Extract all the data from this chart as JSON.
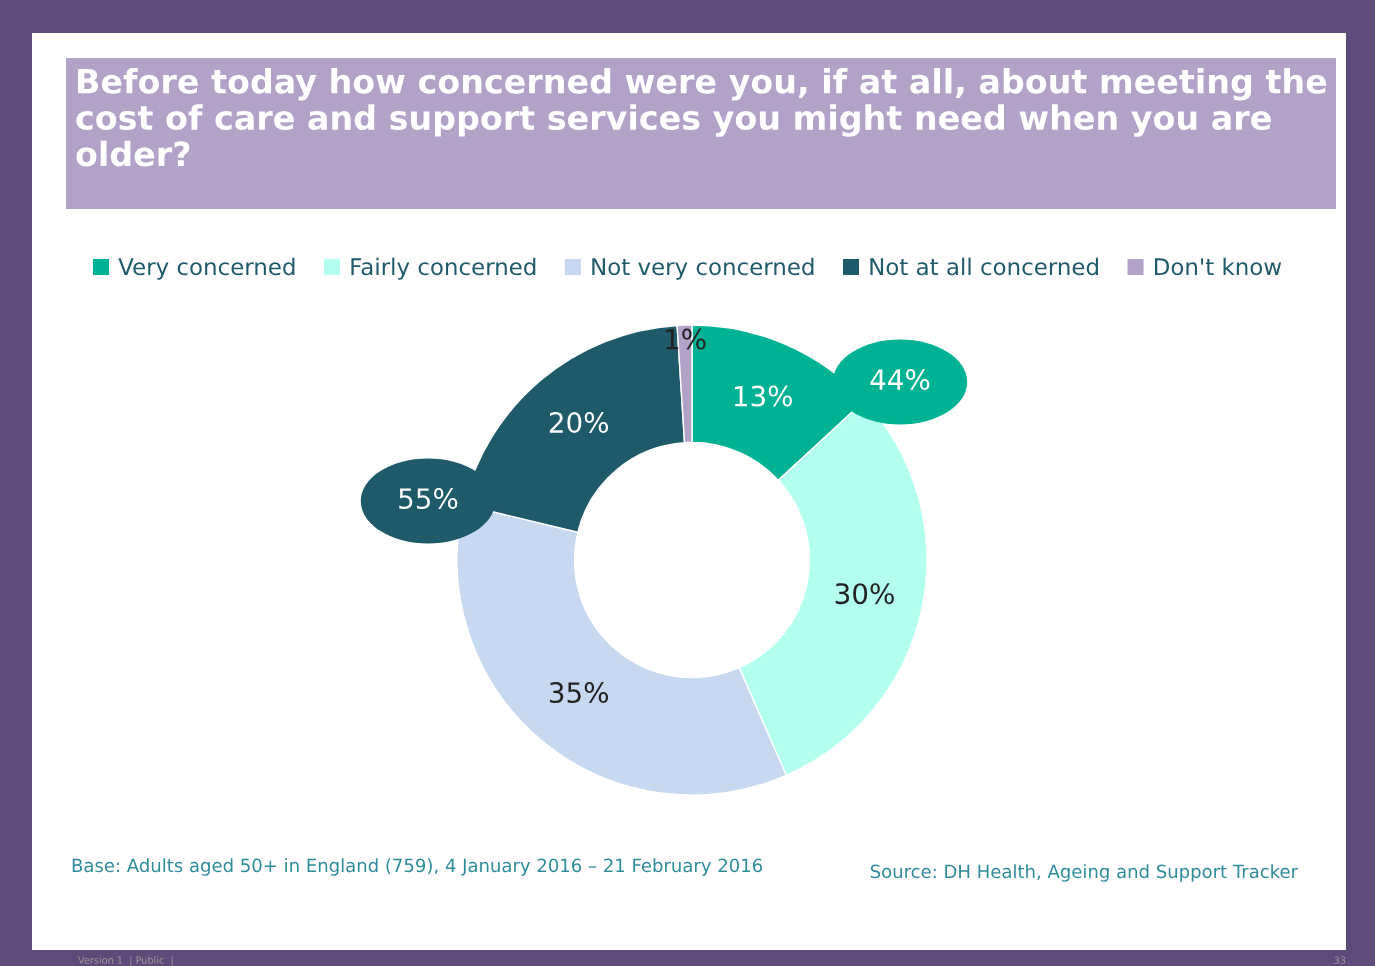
{
  "chart_data": {
    "type": "donut",
    "title": "Before today how concerned were you, if at all, about meeting the cost of care and support services you might need when you are older?",
    "categories": [
      "Very concerned",
      "Fairly concerned",
      "Not very concerned",
      "Not at all concerned",
      "Don't know"
    ],
    "values": [
      13,
      30,
      35,
      20,
      1
    ],
    "colors": [
      "#00b294",
      "#b3fff0",
      "#c6d9f1",
      "#1f5a6a",
      "#b3a2c8"
    ],
    "value_labels": [
      "13%",
      "30%",
      "35%",
      "20%",
      "1%"
    ],
    "legend": "top",
    "annotations": [
      "44%",
      "55%",
      "Base: Adults aged 50+ in England (759), 4 January 2016 – 21 February 2016",
      "Source: DH Health, Ageing and Support Tracker",
      "Version 1  | Public  |",
      "33"
    ]
  }
}
